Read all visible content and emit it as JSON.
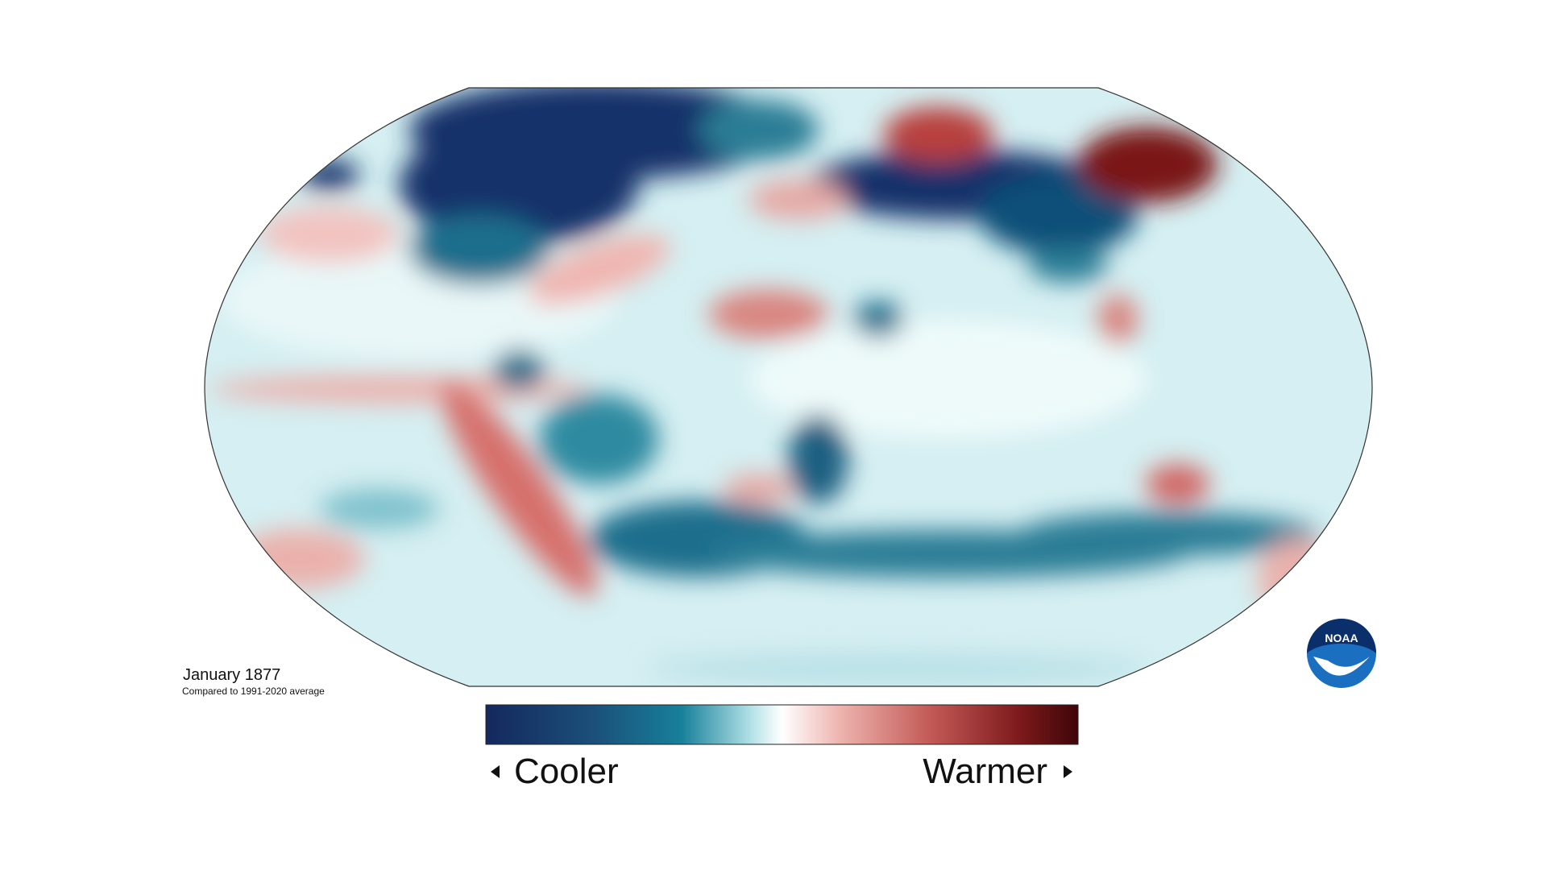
{
  "map": {
    "title": "January 1877",
    "subtitle": "Compared to 1991-2020 average"
  },
  "legend": {
    "low_label": "Cooler",
    "high_label": "Warmer"
  },
  "logo": {
    "text": "NOAA"
  }
}
